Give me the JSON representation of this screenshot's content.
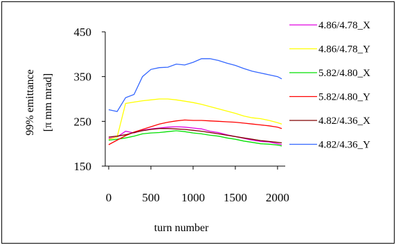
{
  "chart_data": {
    "type": "line",
    "title": "",
    "xlabel": "turn number",
    "ylabel_line1": "99% emittance",
    "ylabel_line2": "[π mm mrad]",
    "xlim": [
      0,
      2050
    ],
    "ylim": [
      150,
      450
    ],
    "xticks": [
      0,
      500,
      1000,
      1500,
      2000
    ],
    "yticks": [
      150,
      250,
      350,
      450
    ],
    "grid": false,
    "legend_position": "right",
    "series": [
      {
        "name": "4.86/4.78_X",
        "color": "#e000e0",
        "x": [
          0,
          100,
          200,
          300,
          400,
          500,
          600,
          700,
          800,
          900,
          1000,
          1100,
          1200,
          1300,
          1400,
          1500,
          1600,
          1700,
          1800,
          1900,
          2000,
          2050
        ],
        "values": [
          212,
          215,
          228,
          224,
          230,
          233,
          235,
          237,
          238,
          237,
          235,
          233,
          228,
          225,
          220,
          216,
          212,
          208,
          205,
          204,
          200,
          198
        ]
      },
      {
        "name": "4.86/4.78_Y",
        "color": "#ffff00",
        "x": [
          0,
          100,
          200,
          300,
          400,
          500,
          600,
          700,
          800,
          900,
          1000,
          1100,
          1200,
          1300,
          1400,
          1500,
          1600,
          1700,
          1800,
          1900,
          2000,
          2050
        ],
        "values": [
          210,
          215,
          290,
          293,
          296,
          298,
          300,
          300,
          298,
          295,
          292,
          288,
          283,
          278,
          273,
          268,
          262,
          258,
          256,
          252,
          247,
          244
        ]
      },
      {
        "name": "5.82/4.80_X",
        "color": "#00e000",
        "x": [
          0,
          100,
          200,
          300,
          400,
          500,
          600,
          700,
          800,
          900,
          1000,
          1100,
          1200,
          1300,
          1400,
          1500,
          1600,
          1700,
          1800,
          1900,
          2000,
          2050
        ],
        "values": [
          208,
          210,
          213,
          217,
          222,
          224,
          225,
          227,
          229,
          227,
          224,
          222,
          219,
          217,
          213,
          210,
          206,
          203,
          200,
          199,
          197,
          195
        ]
      },
      {
        "name": "5.82/4.80_Y",
        "color": "#ff0000",
        "x": [
          0,
          100,
          200,
          300,
          400,
          500,
          600,
          700,
          800,
          900,
          1000,
          1100,
          1200,
          1300,
          1400,
          1500,
          1600,
          1700,
          1800,
          1900,
          2000,
          2050
        ],
        "values": [
          198,
          208,
          218,
          226,
          232,
          238,
          244,
          248,
          251,
          253,
          252,
          252,
          251,
          250,
          249,
          248,
          246,
          244,
          242,
          240,
          237,
          234
        ]
      },
      {
        "name": "4.82/4.36_X",
        "color": "#800000",
        "x": [
          0,
          100,
          200,
          300,
          400,
          500,
          600,
          700,
          800,
          900,
          1000,
          1100,
          1200,
          1300,
          1400,
          1500,
          1600,
          1700,
          1800,
          1900,
          2000,
          2050
        ],
        "values": [
          215,
          217,
          220,
          225,
          229,
          232,
          234,
          234,
          233,
          232,
          230,
          228,
          225,
          222,
          219,
          216,
          213,
          210,
          207,
          205,
          203,
          202
        ]
      },
      {
        "name": "4.82/4.36_Y",
        "color": "#3366ff",
        "x": [
          0,
          100,
          200,
          300,
          400,
          500,
          600,
          700,
          800,
          900,
          1000,
          1100,
          1200,
          1300,
          1400,
          1500,
          1600,
          1700,
          1800,
          1900,
          2000,
          2050
        ],
        "values": [
          276,
          272,
          303,
          310,
          350,
          366,
          370,
          371,
          378,
          376,
          382,
          390,
          390,
          386,
          380,
          375,
          368,
          362,
          358,
          354,
          350,
          345
        ]
      }
    ]
  }
}
